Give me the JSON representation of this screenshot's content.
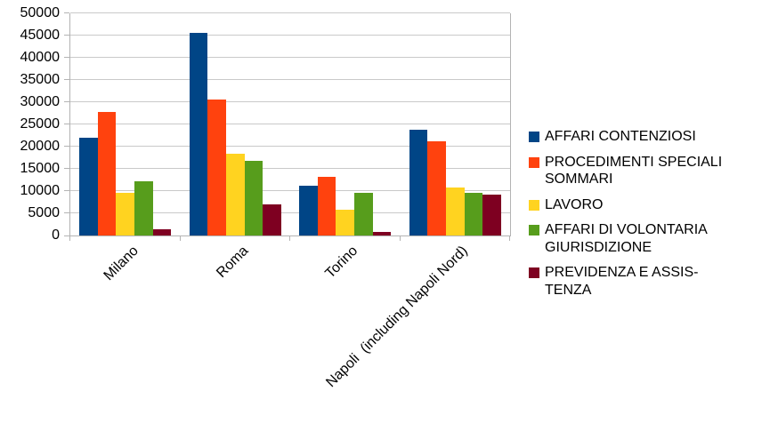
{
  "chart_data": {
    "type": "bar",
    "title": "",
    "xlabel": "",
    "ylabel": "",
    "categories": [
      "Milano",
      "Roma",
      "Torino",
      "Napoli  (including Napoli Nord)"
    ],
    "series": [
      {
        "name": "AFFARI CONTENZIOSI",
        "color": "#004586",
        "legend_lines": [
          "AFFARI CONTENZIOSI"
        ],
        "values": [
          22100,
          45700,
          11300,
          23900
        ]
      },
      {
        "name": "PROCEDIMENTI SPECIALI SOMMARI",
        "color": "#FF420E",
        "legend_lines": [
          "PROCEDIMENTI SPECIALI",
          "SOMMARI"
        ],
        "values": [
          27800,
          30600,
          13200,
          21200
        ]
      },
      {
        "name": "LAVORO",
        "color": "#FFD320",
        "legend_lines": [
          "LAVORO"
        ],
        "values": [
          9600,
          18500,
          5900,
          10800
        ]
      },
      {
        "name": "AFFARI DI VOLONTARIA GIURISDIZIONE",
        "color": "#579D1C",
        "legend_lines": [
          "AFFARI DI VOLONTARIA",
          "GIURISDIZIONE"
        ],
        "values": [
          12300,
          16900,
          9700,
          9700
        ]
      },
      {
        "name": "PREVIDENZA E ASSISTENZA",
        "color": "#7E0021",
        "legend_lines": [
          "PREVIDENZA E ASSIS-",
          "TENZA"
        ],
        "values": [
          1500,
          7100,
          800,
          9200
        ]
      }
    ],
    "ylim": [
      0,
      50000
    ],
    "ytick_step": 5000,
    "yticks": [
      "0",
      "5000",
      "10000",
      "15000",
      "20000",
      "25000",
      "30000",
      "35000",
      "40000",
      "45000",
      "50000"
    ],
    "grid": true,
    "legend_position": "right"
  }
}
